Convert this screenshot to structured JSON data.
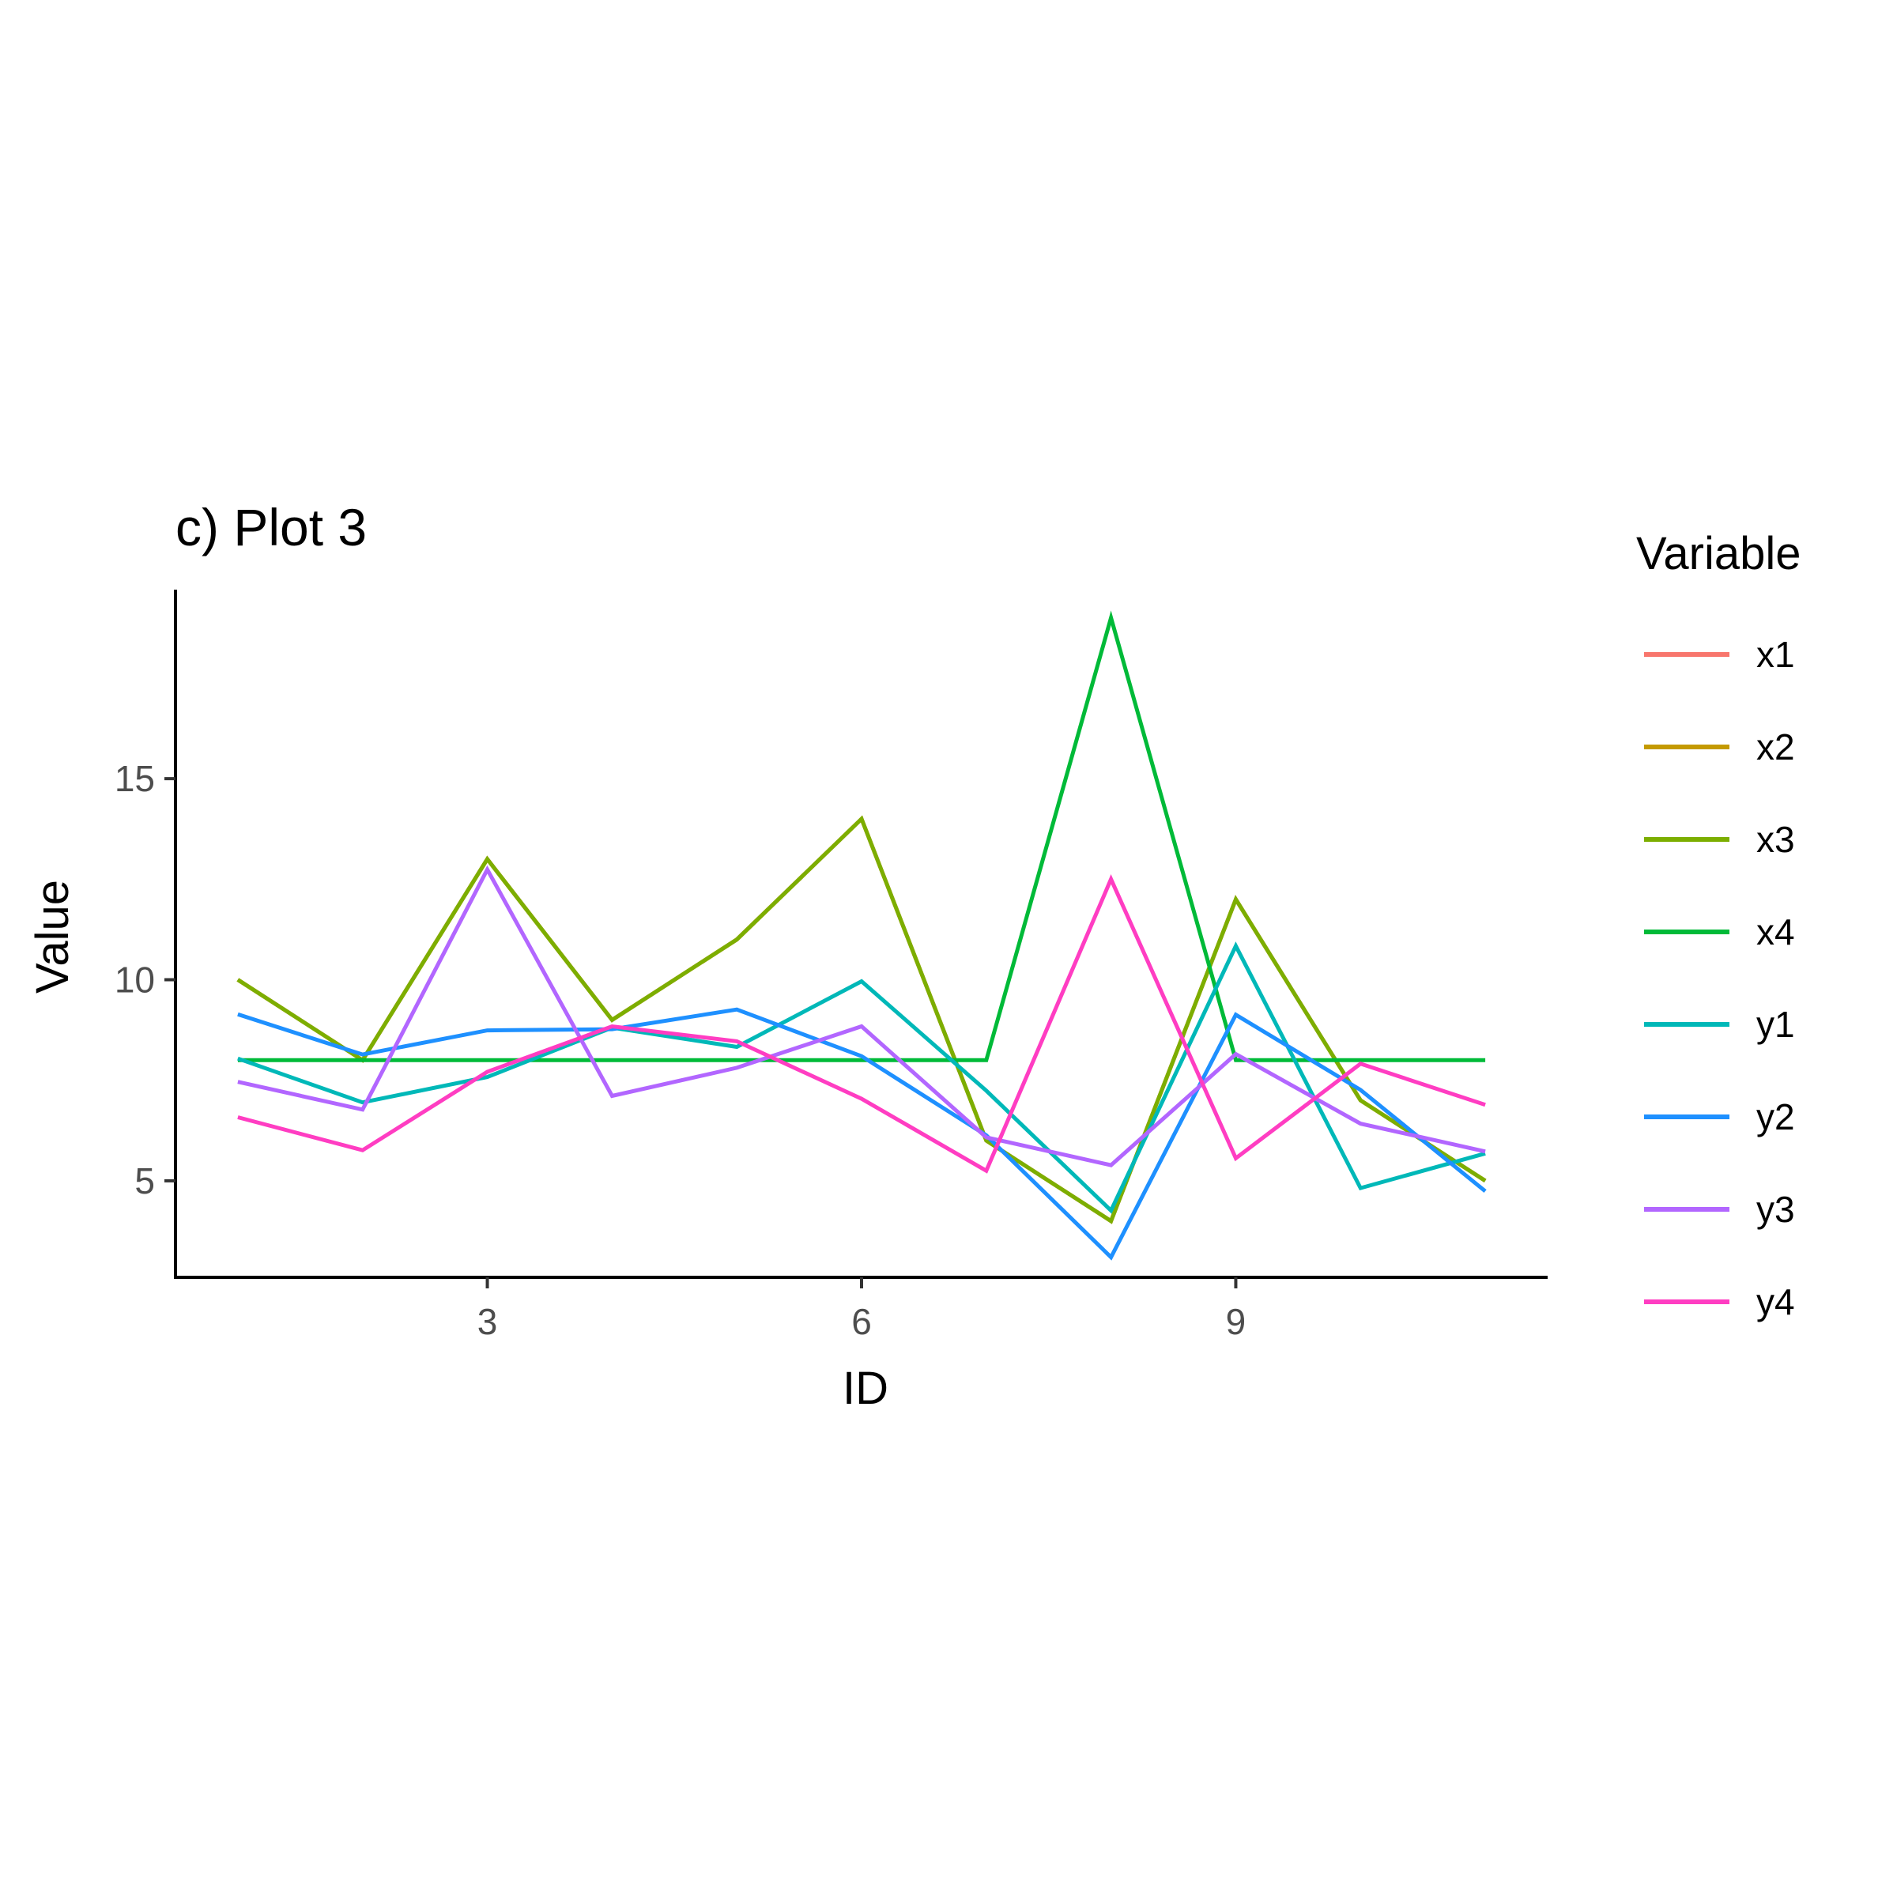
{
  "chart_data": {
    "type": "line",
    "title": "c) Plot 3",
    "xlabel": "ID",
    "ylabel": "Value",
    "xlim": [
      0.5,
      11.5
    ],
    "ylim": [
      2.6,
      19.7
    ],
    "x_ticks": [
      3,
      6,
      9
    ],
    "y_ticks": [
      5,
      10,
      15
    ],
    "grid": false,
    "legend": {
      "title": "Variable",
      "placement": "right"
    },
    "x": [
      1,
      2,
      3,
      4,
      5,
      6,
      7,
      8,
      9,
      10,
      11
    ],
    "series": [
      {
        "name": "x1",
        "color": "#F8766D",
        "values": [
          10,
          8,
          13,
          9,
          11,
          14,
          6,
          4,
          12,
          7,
          5
        ]
      },
      {
        "name": "x2",
        "color": "#C49A00",
        "values": [
          10,
          8,
          13,
          9,
          11,
          14,
          6,
          4,
          12,
          7,
          5
        ]
      },
      {
        "name": "x3",
        "color": "#7CAE00",
        "values": [
          10,
          8,
          13,
          9,
          11,
          14,
          6,
          4,
          12,
          7,
          5
        ]
      },
      {
        "name": "x4",
        "color": "#00BA38",
        "values": [
          8,
          8,
          8,
          8,
          8,
          8,
          8,
          19,
          8,
          8,
          8
        ]
      },
      {
        "name": "y1",
        "color": "#00B8B8",
        "values": [
          8.04,
          6.95,
          7.58,
          8.81,
          8.33,
          9.96,
          7.24,
          4.26,
          10.84,
          4.82,
          5.68
        ]
      },
      {
        "name": "y2",
        "color": "#1E90FF",
        "values": [
          9.14,
          8.14,
          8.74,
          8.77,
          9.26,
          8.1,
          6.13,
          3.1,
          9.13,
          7.26,
          4.74
        ]
      },
      {
        "name": "y3",
        "color": "#B266FF",
        "values": [
          7.46,
          6.77,
          12.74,
          7.11,
          7.81,
          8.84,
          6.08,
          5.39,
          8.15,
          6.42,
          5.73
        ]
      },
      {
        "name": "y4",
        "color": "#FF3DC2",
        "values": [
          6.58,
          5.76,
          7.71,
          8.84,
          8.47,
          7.04,
          5.25,
          12.5,
          5.56,
          7.91,
          6.89
        ]
      }
    ]
  }
}
